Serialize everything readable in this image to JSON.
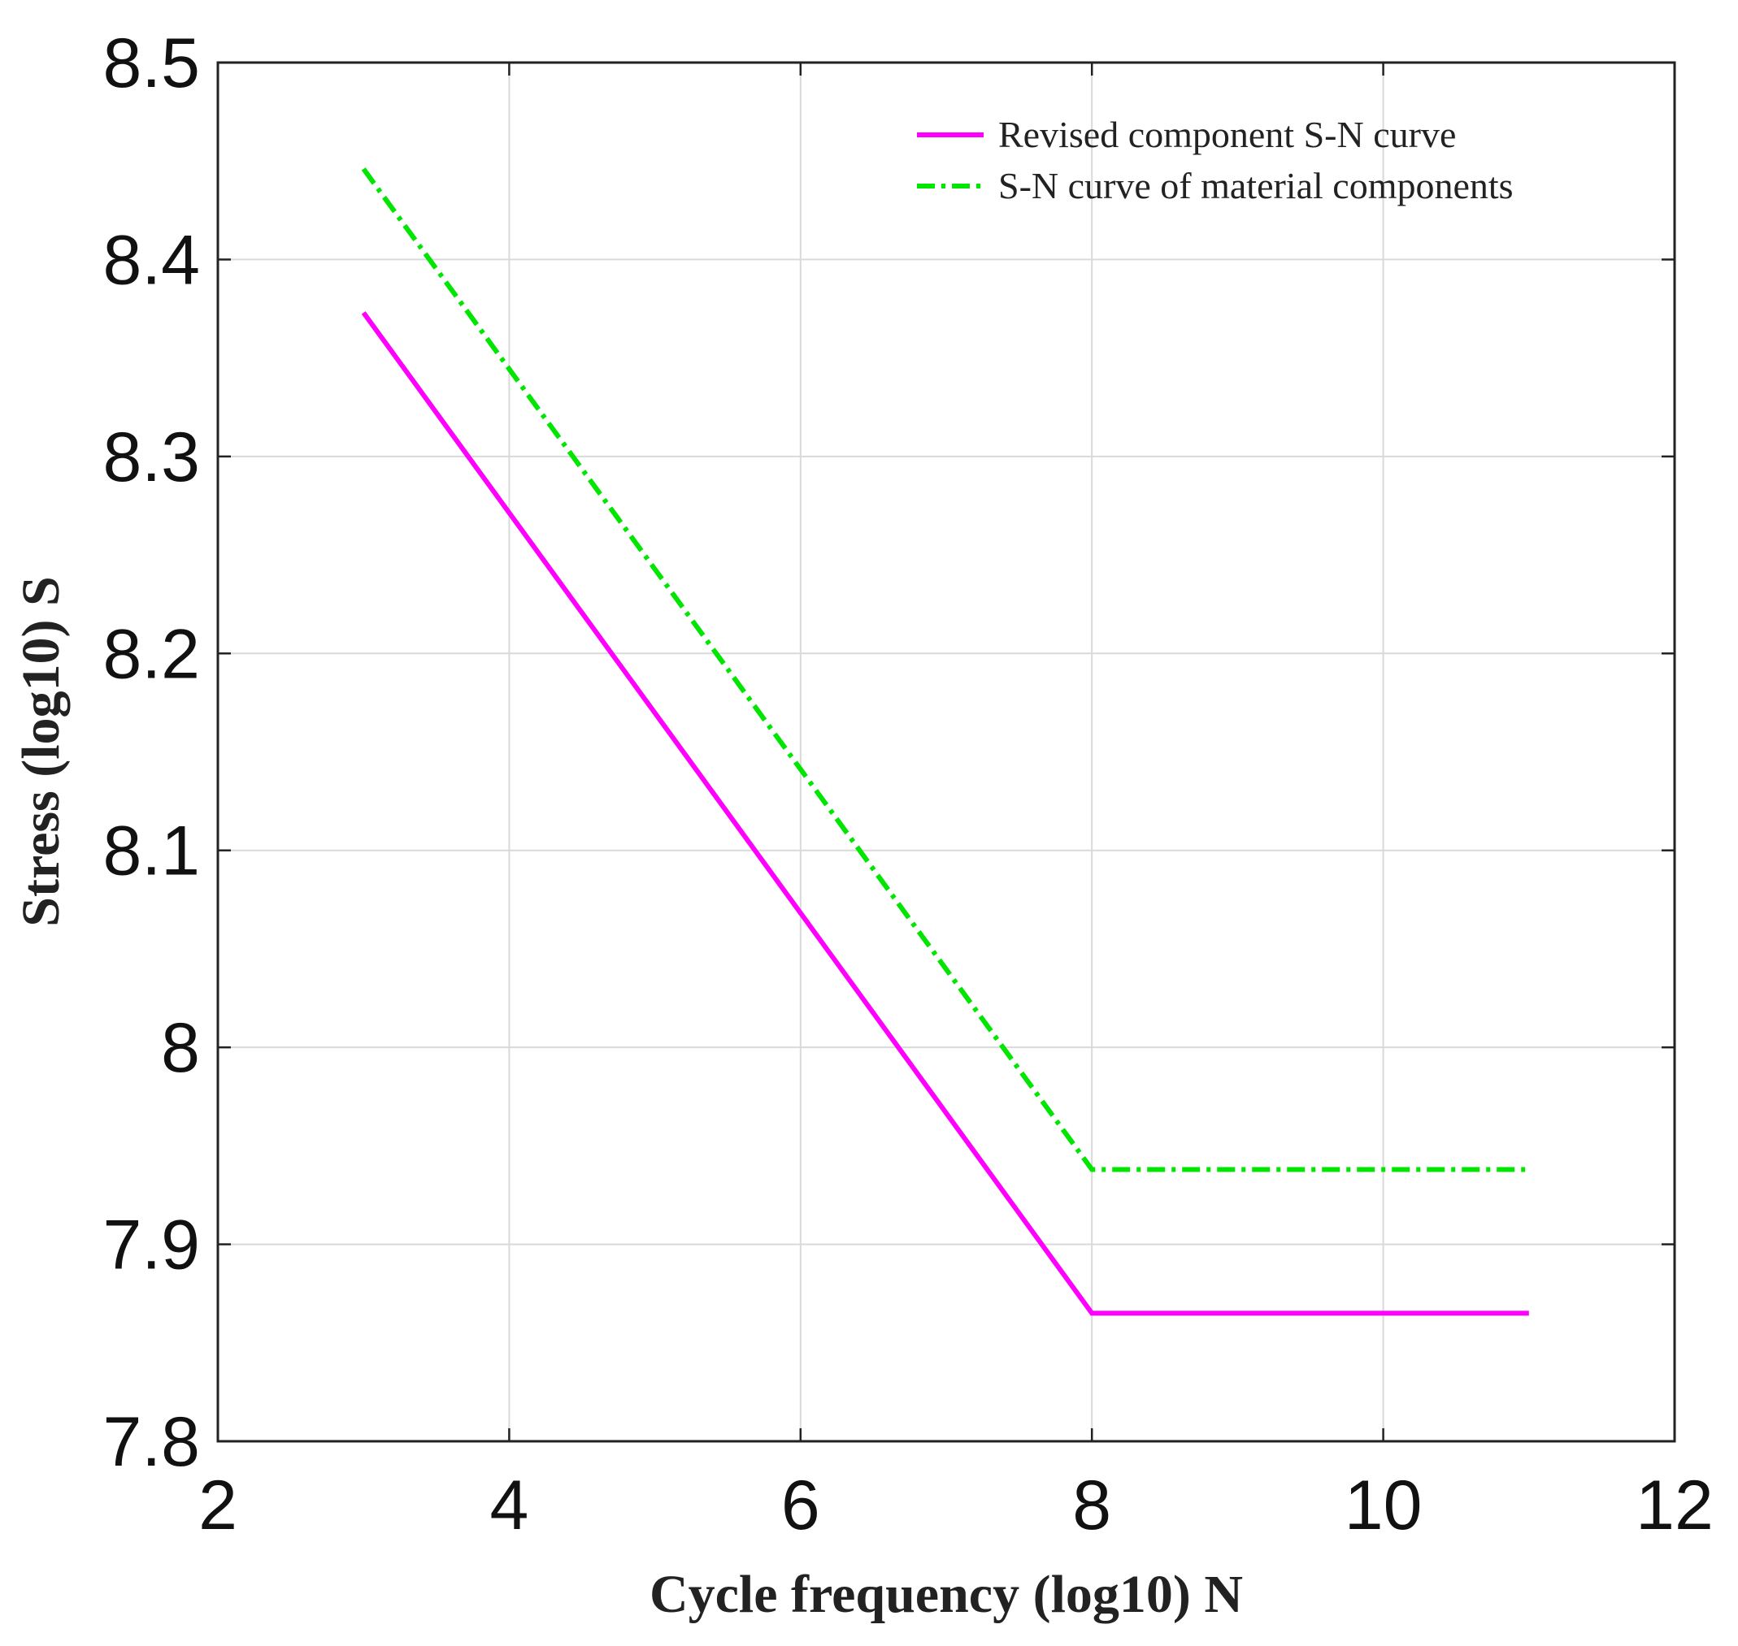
{
  "chart_data": {
    "type": "line",
    "xlabel": "Cycle frequency (log10) N",
    "ylabel": "Stress (log10) S",
    "xlim": [
      2,
      12
    ],
    "ylim": [
      7.8,
      8.5
    ],
    "xticks": [
      2,
      4,
      6,
      8,
      10,
      12
    ],
    "yticks": [
      7.8,
      7.9,
      8,
      8.1,
      8.2,
      8.3,
      8.4,
      8.5
    ],
    "xtick_labels": [
      "2",
      "4",
      "6",
      "8",
      "10",
      "12"
    ],
    "ytick_labels": [
      "7.8",
      "7.9",
      "8",
      "8.1",
      "8.2",
      "8.3",
      "8.4",
      "8.5"
    ],
    "grid": true,
    "legend_position": "top-right",
    "series": [
      {
        "name": "Revised component S-N curve",
        "color": "#ff00ff",
        "style": "solid",
        "x": [
          3,
          8,
          11
        ],
        "y": [
          8.373,
          7.865,
          7.865
        ]
      },
      {
        "name": "S-N curve of material components",
        "color": "#00e600",
        "style": "dash-dot",
        "x": [
          3,
          8,
          11
        ],
        "y": [
          8.446,
          7.938,
          7.938
        ]
      }
    ]
  }
}
